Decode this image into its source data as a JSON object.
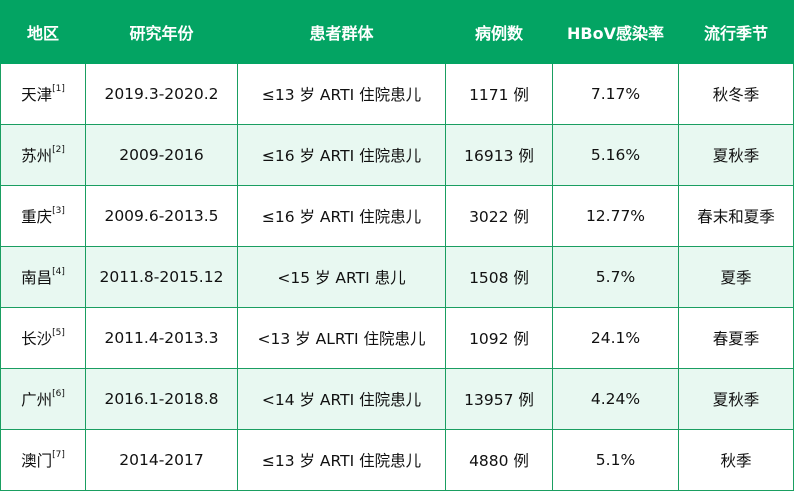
{
  "headers": [
    "地区",
    "研究年份",
    "患者群体",
    "病例数",
    "HBoV感染率",
    "流行季节"
  ],
  "rows": [
    {
      "region": "天津",
      "ref": "[1]",
      "years": "2019.3-2020.2",
      "group": "≤13 岁 ARTI 住院患儿",
      "cases": "1171 例",
      "rate": "7.17%",
      "season": "秋冬季"
    },
    {
      "region": "苏州",
      "ref": "[2]",
      "years": "2009-2016",
      "group": "≤16 岁 ARTI 住院患儿",
      "cases": "16913 例",
      "rate": "5.16%",
      "season": "夏秋季"
    },
    {
      "region": "重庆",
      "ref": "[3]",
      "years": "2009.6-2013.5",
      "group": "≤16 岁 ARTI 住院患儿",
      "cases": "3022 例",
      "rate": "12.77%",
      "season": "春末和夏季"
    },
    {
      "region": "南昌",
      "ref": "[4]",
      "years": "2011.8-2015.12",
      "group": "<15 岁 ARTI 患儿",
      "cases": "1508 例",
      "rate": "5.7%",
      "season": "夏季"
    },
    {
      "region": "长沙",
      "ref": "[5]",
      "years": "2011.4-2013.3",
      "group": "<13 岁 ALRTI 住院患儿",
      "cases": "1092 例",
      "rate": "24.1%",
      "season": "春夏季"
    },
    {
      "region": "广州",
      "ref": "[6]",
      "years": "2016.1-2018.8",
      "group": "<14 岁 ARTI 住院患儿",
      "cases": "13957 例",
      "rate": "4.24%",
      "season": "夏秋季"
    },
    {
      "region": "澳门",
      "ref": "[7]",
      "years": "2014-2017",
      "group": "≤13 岁 ARTI 住院患儿",
      "cases": "4880 例",
      "rate": "5.1%",
      "season": "秋季"
    }
  ]
}
